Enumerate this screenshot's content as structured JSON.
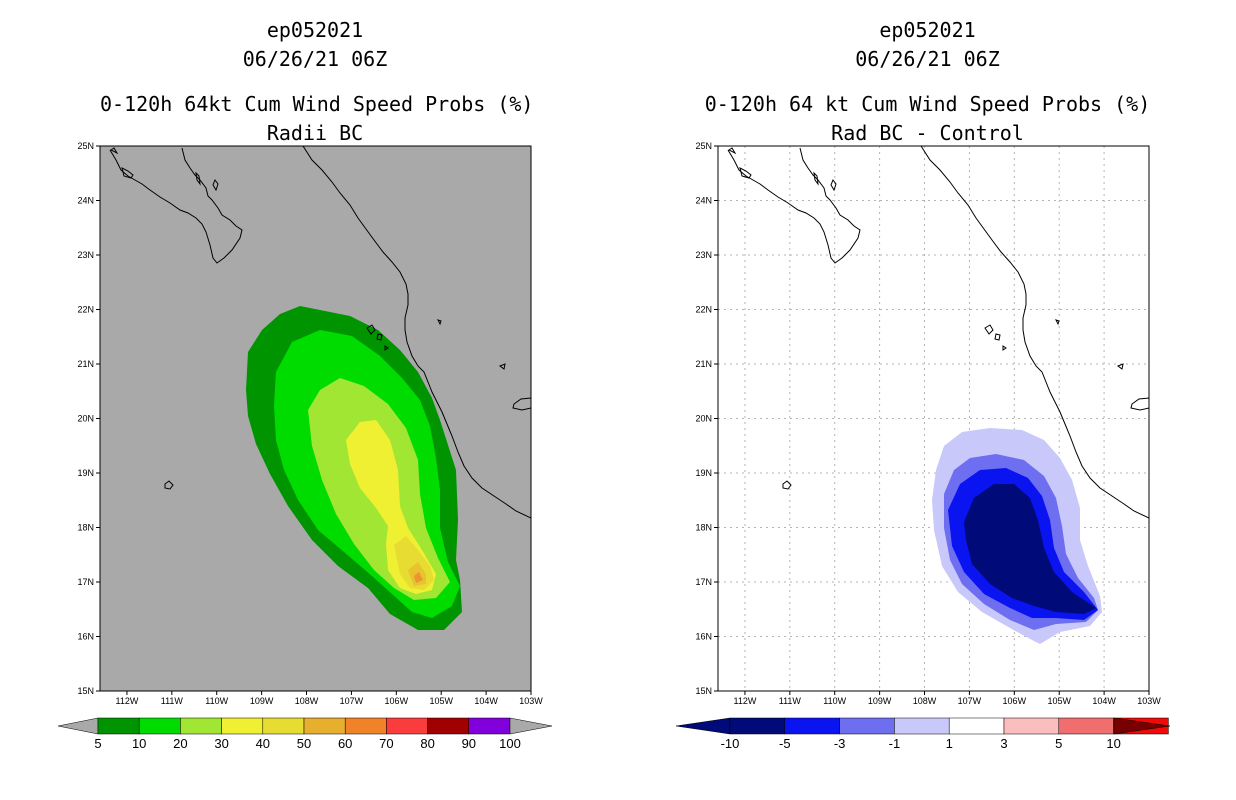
{
  "left": {
    "storm_id": "ep052021",
    "datetime": "06/26/21 06Z",
    "title": "0-120h 64kt Cum Wind Speed Probs (%)",
    "subtitle": "Radii BC",
    "colorbar": {
      "labels": [
        "5",
        "10",
        "20",
        "30",
        "40",
        "50",
        "60",
        "70",
        "80",
        "90",
        "100"
      ],
      "colors": [
        "#009400",
        "#00dc00",
        "#a0e632",
        "#f0f032",
        "#e6dc32",
        "#e6af2d",
        "#f08228",
        "#fa3c3c",
        "#a00000",
        "#8200dc"
      ]
    }
  },
  "right": {
    "storm_id": "ep052021",
    "datetime": "06/26/21 06Z",
    "title": "0-120h 64 kt Cum Wind Speed Probs (%)",
    "subtitle": "Rad BC - Control",
    "colorbar": {
      "labels": [
        "-10",
        "-5",
        "-3",
        "-1",
        "1",
        "3",
        "5",
        "10"
      ],
      "colors": [
        "#000a78",
        "#0a14f0",
        "#6e6ef0",
        "#c8c8fa",
        "#ffffff",
        "#fabebe",
        "#f06e6e",
        "#f00a0a"
      ]
    }
  },
  "axes": {
    "lat_labels": [
      "25N",
      "24N",
      "23N",
      "22N",
      "21N",
      "20N",
      "19N",
      "18N",
      "17N",
      "16N",
      "15N"
    ],
    "lon_labels": [
      "112W",
      "111W",
      "110W",
      "109W",
      "108W",
      "107W",
      "106W",
      "105W",
      "104W",
      "103W"
    ],
    "lat_range": [
      15,
      25
    ],
    "lon_range": [
      -112.6,
      -103
    ]
  },
  "colors": {
    "left_background": "#a9a9a9",
    "right_background": "#ffffff",
    "coast": "#000000",
    "grid": "#b4b4b4"
  }
}
